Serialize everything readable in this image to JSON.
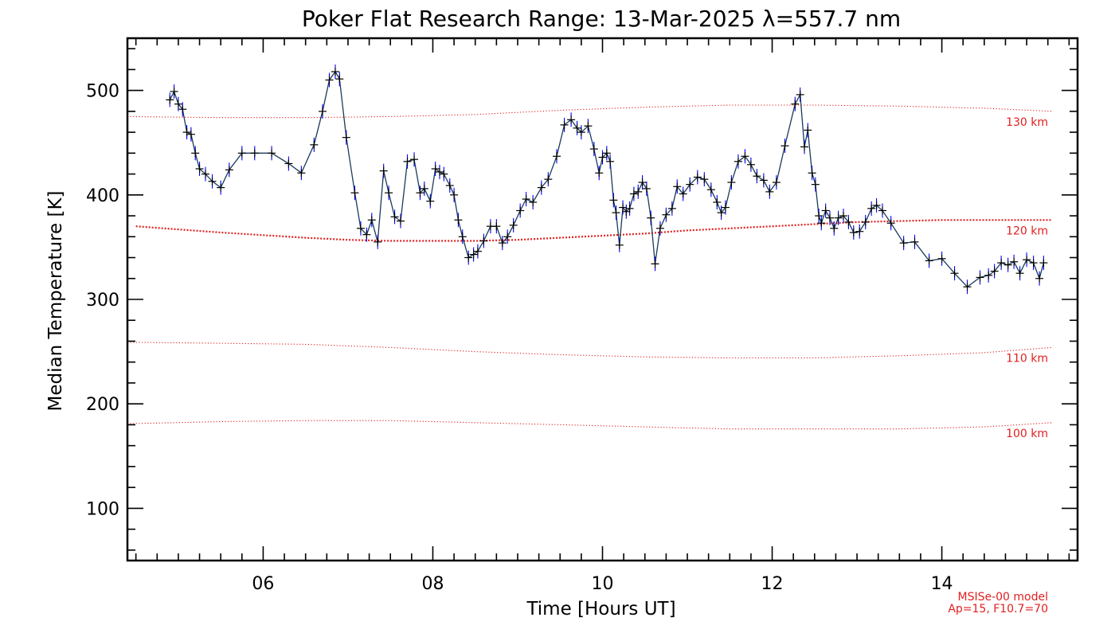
{
  "chart_data": {
    "type": "line",
    "title": "Poker Flat Research Range: 13-Mar-2025 λ=557.7 nm",
    "xlabel": "Time [Hours UT]",
    "ylabel": "Median Temperature [K]",
    "xlim": [
      4.4,
      15.6
    ],
    "ylim": [
      50,
      550
    ],
    "x_ticks": [
      6,
      8,
      10,
      12,
      14
    ],
    "x_tick_labels": [
      "06",
      "08",
      "10",
      "12",
      "14"
    ],
    "y_ticks": [
      100,
      200,
      300,
      400,
      500
    ],
    "y_tick_labels": [
      "100",
      "200",
      "300",
      "400",
      "500"
    ],
    "grid": false,
    "series": [
      {
        "color": "#000080",
        "errorbar_color": "#0000ff",
        "marker": "plus",
        "points": [
          [
            4.9,
            491
          ],
          [
            4.95,
            499
          ],
          [
            5.0,
            487
          ],
          [
            5.05,
            482
          ],
          [
            5.1,
            460
          ],
          [
            5.15,
            458
          ],
          [
            5.2,
            440
          ],
          [
            5.25,
            425
          ],
          [
            5.32,
            420
          ],
          [
            5.4,
            413
          ],
          [
            5.5,
            407
          ],
          [
            5.6,
            424
          ],
          [
            5.75,
            440
          ],
          [
            5.9,
            440
          ],
          [
            6.1,
            440
          ],
          [
            6.3,
            430
          ],
          [
            6.45,
            421
          ],
          [
            6.6,
            448
          ],
          [
            6.7,
            480
          ],
          [
            6.78,
            510
          ],
          [
            6.85,
            518
          ],
          [
            6.9,
            511
          ],
          [
            6.98,
            455
          ],
          [
            7.08,
            402
          ],
          [
            7.15,
            368
          ],
          [
            7.22,
            362
          ],
          [
            7.28,
            376
          ],
          [
            7.35,
            355
          ],
          [
            7.42,
            423
          ],
          [
            7.48,
            402
          ],
          [
            7.55,
            379
          ],
          [
            7.62,
            375
          ],
          [
            7.7,
            432
          ],
          [
            7.78,
            434
          ],
          [
            7.85,
            402
          ],
          [
            7.9,
            406
          ],
          [
            7.97,
            394
          ],
          [
            8.03,
            425
          ],
          [
            8.08,
            422
          ],
          [
            8.13,
            420
          ],
          [
            8.2,
            409
          ],
          [
            8.25,
            400
          ],
          [
            8.3,
            376
          ],
          [
            8.35,
            360
          ],
          [
            8.42,
            340
          ],
          [
            8.48,
            343
          ],
          [
            8.53,
            346
          ],
          [
            8.6,
            356
          ],
          [
            8.68,
            370
          ],
          [
            8.75,
            370
          ],
          [
            8.82,
            354
          ],
          [
            8.88,
            360
          ],
          [
            8.95,
            371
          ],
          [
            9.03,
            385
          ],
          [
            9.1,
            396
          ],
          [
            9.18,
            393
          ],
          [
            9.28,
            407
          ],
          [
            9.36,
            415
          ],
          [
            9.46,
            437
          ],
          [
            9.55,
            467
          ],
          [
            9.63,
            472
          ],
          [
            9.7,
            464
          ],
          [
            9.75,
            460
          ],
          [
            9.83,
            466
          ],
          [
            9.9,
            444
          ],
          [
            9.96,
            421
          ],
          [
            10.0,
            436
          ],
          [
            10.05,
            440
          ],
          [
            10.09,
            432
          ],
          [
            10.13,
            395
          ],
          [
            10.16,
            383
          ],
          [
            10.2,
            352
          ],
          [
            10.24,
            388
          ],
          [
            10.28,
            384
          ],
          [
            10.32,
            387
          ],
          [
            10.37,
            401
          ],
          [
            10.42,
            403
          ],
          [
            10.47,
            412
          ],
          [
            10.52,
            406
          ],
          [
            10.57,
            378
          ],
          [
            10.62,
            334
          ],
          [
            10.68,
            368
          ],
          [
            10.75,
            381
          ],
          [
            10.82,
            387
          ],
          [
            10.88,
            408
          ],
          [
            10.95,
            401
          ],
          [
            11.03,
            410
          ],
          [
            11.12,
            417
          ],
          [
            11.2,
            415
          ],
          [
            11.28,
            405
          ],
          [
            11.35,
            393
          ],
          [
            11.4,
            383
          ],
          [
            11.45,
            388
          ],
          [
            11.52,
            412
          ],
          [
            11.6,
            432
          ],
          [
            11.68,
            437
          ],
          [
            11.75,
            429
          ],
          [
            11.82,
            418
          ],
          [
            11.9,
            414
          ],
          [
            11.97,
            403
          ],
          [
            12.05,
            412
          ],
          [
            12.15,
            447
          ],
          [
            12.27,
            487
          ],
          [
            12.33,
            496
          ],
          [
            12.38,
            446
          ],
          [
            12.42,
            462
          ],
          [
            12.47,
            421
          ],
          [
            12.51,
            410
          ],
          [
            12.55,
            380
          ],
          [
            12.58,
            373
          ],
          [
            12.63,
            385
          ],
          [
            12.68,
            378
          ],
          [
            12.73,
            368
          ],
          [
            12.78,
            378
          ],
          [
            12.84,
            380
          ],
          [
            12.9,
            374
          ],
          [
            12.96,
            364
          ],
          [
            13.03,
            365
          ],
          [
            13.1,
            374
          ],
          [
            13.17,
            387
          ],
          [
            13.23,
            390
          ],
          [
            13.3,
            385
          ],
          [
            13.4,
            373
          ],
          [
            13.55,
            354
          ],
          [
            13.68,
            355
          ],
          [
            13.85,
            337
          ],
          [
            14.0,
            339
          ],
          [
            14.15,
            325
          ],
          [
            14.3,
            312
          ],
          [
            14.45,
            321
          ],
          [
            14.55,
            323
          ],
          [
            14.62,
            327
          ],
          [
            14.7,
            335
          ],
          [
            14.78,
            333
          ],
          [
            14.85,
            336
          ],
          [
            14.92,
            325
          ],
          [
            15.0,
            338
          ],
          [
            15.08,
            335
          ],
          [
            15.15,
            320
          ],
          [
            15.2,
            335
          ]
        ]
      }
    ],
    "model_curves": [
      {
        "label": "130 km",
        "color": "#e02020",
        "style": "dotted",
        "x": [
          4.4,
          5.5,
          6.5,
          7.5,
          8.5,
          9.5,
          10.5,
          11.5,
          12.5,
          13.5,
          14.5,
          15.3
        ],
        "y": [
          475,
          474,
          474,
          475,
          477,
          481,
          484,
          486,
          486,
          485,
          483,
          480
        ]
      },
      {
        "label": "120 km",
        "color": "#e02020",
        "style": "dotted-heavy",
        "x": [
          4.5,
          5.5,
          6.5,
          7.0,
          7.5,
          8.0,
          8.5,
          9.0,
          9.5,
          10.0,
          10.5,
          11.0,
          11.5,
          12.0,
          12.5,
          13.0,
          13.5,
          14.0,
          14.5,
          15.3
        ],
        "y": [
          370,
          364,
          359,
          357,
          356,
          356,
          356,
          357,
          359,
          361,
          363,
          366,
          368,
          370,
          372,
          374,
          375,
          376,
          376,
          376
        ]
      },
      {
        "label": "110 km",
        "color": "#e02020",
        "style": "dotted",
        "x": [
          4.4,
          5.5,
          6.5,
          7.5,
          8.5,
          9.5,
          10.5,
          11.5,
          12.5,
          13.5,
          14.5,
          15.3
        ],
        "y": [
          259,
          258,
          257,
          254,
          250,
          247,
          245,
          244,
          244,
          246,
          249,
          254
        ]
      },
      {
        "label": "100 km",
        "color": "#e02020",
        "style": "dotted",
        "x": [
          4.4,
          5.5,
          6.5,
          7.5,
          8.5,
          9.5,
          10.5,
          11.5,
          12.5,
          13.5,
          14.5,
          15.3
        ],
        "y": [
          181,
          183,
          184,
          184,
          182,
          180,
          178,
          176,
          176,
          176,
          178,
          182
        ]
      }
    ],
    "model_note": {
      "line1": "MSISe-00 model",
      "line2": "Ap=15, F10.7=70"
    }
  }
}
